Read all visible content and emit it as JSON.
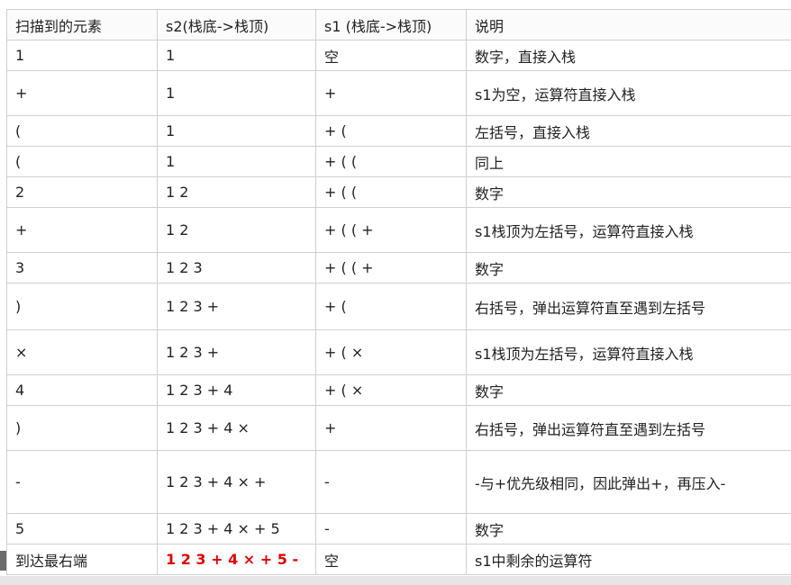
{
  "headers": [
    "扫描到的元素",
    "s2(栈底->栈顶)",
    "s1 (栈底->栈顶)",
    "说明"
  ],
  "rows": [
    {
      "el": "1",
      "s2": "1",
      "s1": "空",
      "note": "数字，直接入栈"
    },
    {
      "el": "+",
      "s2": "1",
      "s1": "+",
      "note": "s1为空，运算符直接入栈"
    },
    {
      "el": "(",
      "s2": "1",
      "s1": "+ (",
      "note": "左括号，直接入栈"
    },
    {
      "el": "(",
      "s2": "1",
      "s1": "+ ( (",
      "note": "同上"
    },
    {
      "el": "2",
      "s2": "1 2",
      "s1": "+ ( (",
      "note": "数字"
    },
    {
      "el": "+",
      "s2": "1 2",
      "s1": "+ ( ( +",
      "note": "s1栈顶为左括号，运算符直接入栈"
    },
    {
      "el": "3",
      "s2": "1 2 3",
      "s1": "+ ( ( +",
      "note": "数字"
    },
    {
      "el": ")",
      "s2": "1 2 3 +",
      "s1": "+ (",
      "note": "右括号，弹出运算符直至遇到左括号"
    },
    {
      "el": "×",
      "s2": "1 2 3 +",
      "s1": "+ ( ×",
      "note": "s1栈顶为左括号，运算符直接入栈"
    },
    {
      "el": "4",
      "s2": "1 2 3 + 4",
      "s1": "+ ( ×",
      "note": "数字"
    },
    {
      "el": ")",
      "s2": "1 2 3 + 4 ×",
      "s1": "+",
      "note": "右括号，弹出运算符直至遇到左括号"
    },
    {
      "el": "-",
      "s2": "1 2 3 + 4 × +",
      "s1": "-",
      "note": "-与+优先级相同，因此弹出+，再压入-"
    },
    {
      "el": "5",
      "s2": "1 2 3 + 4 × + 5",
      "s1": "-",
      "note": "数字"
    },
    {
      "el": "到达最右端",
      "s2": "1 2 3 + 4 × + 5 -",
      "s1": "空",
      "note": "s1中剩余的运算符",
      "highlight": true
    }
  ],
  "colors": {
    "highlight": "#e00000",
    "border": "#cfcfcf"
  }
}
